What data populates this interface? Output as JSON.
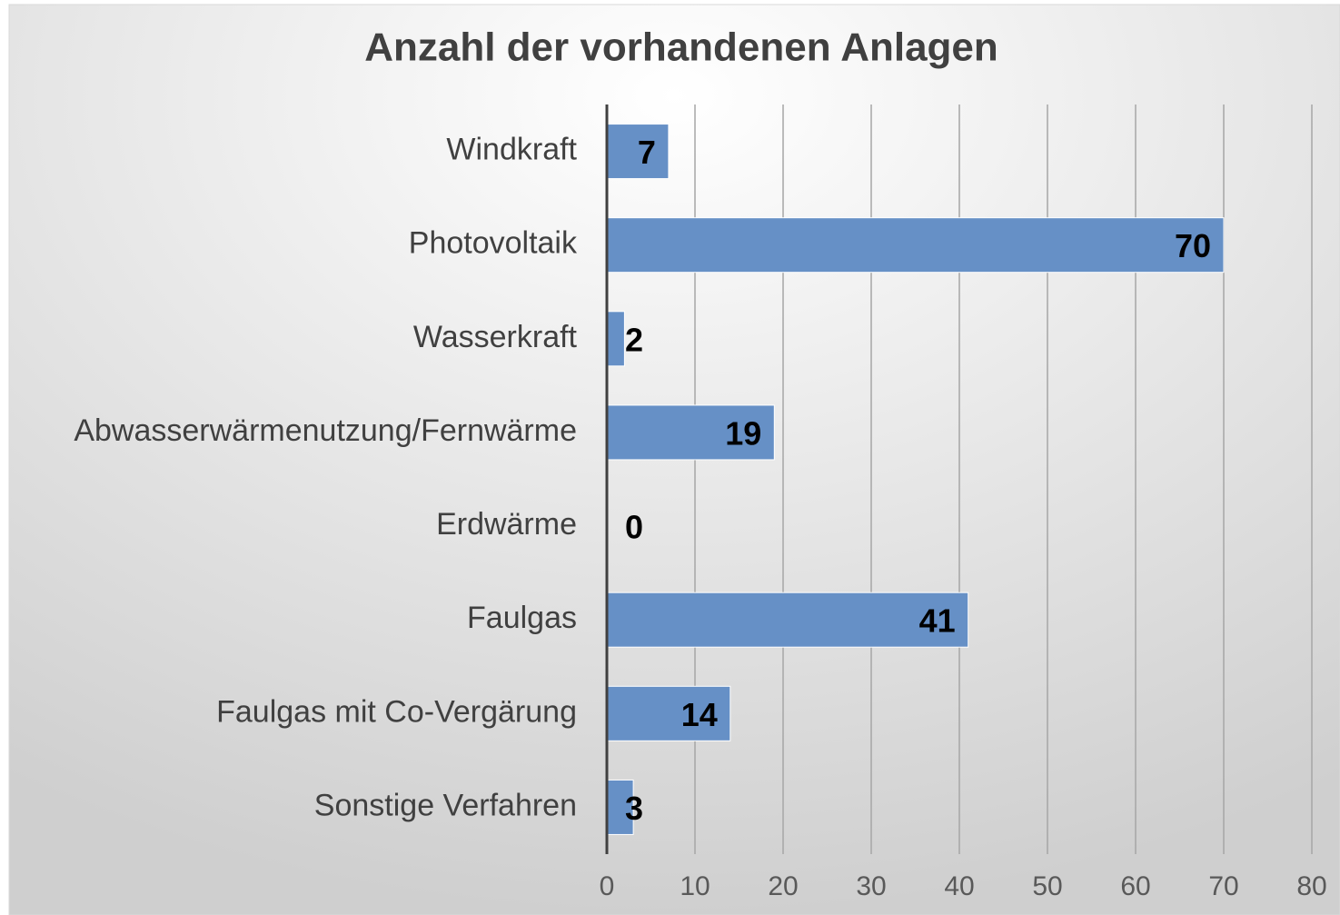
{
  "chart_data": {
    "type": "bar",
    "orientation": "horizontal",
    "title": "Anzahl der vorhandenen Anlagen",
    "categories": [
      "Windkraft",
      "Photovoltaik",
      "Wasserkraft",
      "Abwasserwärmenutzung/Fernwärme",
      "Erdwärme",
      "Faulgas",
      "Faulgas mit Co-Vergärung",
      "Sonstige Verfahren"
    ],
    "values": [
      7,
      70,
      2,
      19,
      0,
      41,
      14,
      3
    ],
    "color": "#6690c6",
    "xlim": [
      0,
      80
    ],
    "xticks": [
      0,
      10,
      20,
      30,
      40,
      50,
      60,
      70,
      80
    ],
    "grid": true
  }
}
